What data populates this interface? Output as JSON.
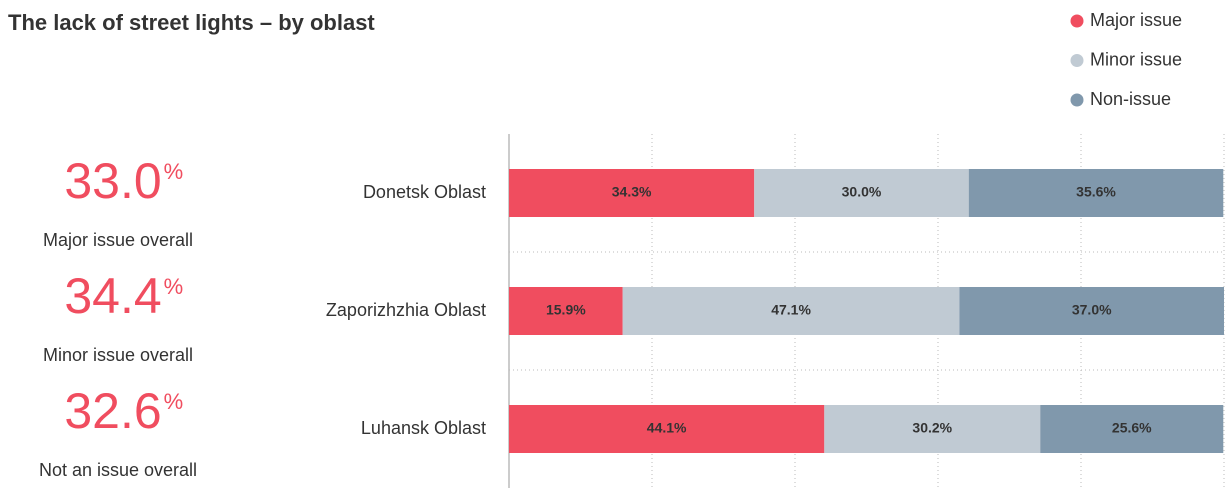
{
  "chart_data": {
    "type": "stacked_bar_horizontal",
    "title": "The lack of street lights – by oblast",
    "categories": [
      "Donetsk Oblast",
      "Zaporizhzhia Oblast",
      "Luhansk Oblast"
    ],
    "series": [
      {
        "name": "Major issue",
        "color": "#f04d5f",
        "values": [
          34.3,
          15.9,
          44.1
        ],
        "value_labels": [
          "34.3%",
          "15.9%",
          "44.1%"
        ]
      },
      {
        "name": "Minor issue",
        "color": "#c0cad3",
        "values": [
          30.0,
          47.1,
          30.2
        ],
        "value_labels": [
          "30.0%",
          "47.1%",
          "30.2%"
        ]
      },
      {
        "name": "Non-issue",
        "color": "#8098ac",
        "values": [
          35.6,
          37.0,
          25.6
        ],
        "value_labels": [
          "35.6%",
          "37.0%",
          "25.6%"
        ]
      }
    ],
    "xlim": [
      0,
      100
    ],
    "xticks": [
      0,
      20,
      40,
      60,
      80,
      100
    ],
    "grid": true,
    "legend": "top-right"
  },
  "summary": [
    {
      "value": "33.0",
      "unit": "%",
      "label": "Major issue overall"
    },
    {
      "value": "34.4",
      "unit": "%",
      "label": "Minor issue overall"
    },
    {
      "value": "32.6",
      "unit": "%",
      "label": "Not an issue overall"
    }
  ]
}
